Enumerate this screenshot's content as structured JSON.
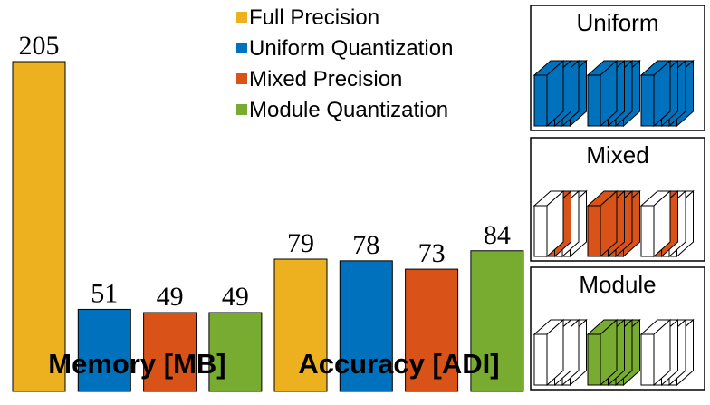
{
  "chart_data": {
    "type": "bar",
    "title": "",
    "groups": [
      {
        "label": "Memory [MB]",
        "values": [
          205,
          51,
          49,
          49
        ]
      },
      {
        "label": "Accuracy [ADI]",
        "values": [
          79,
          78,
          73,
          84
        ]
      }
    ],
    "series": [
      {
        "name": "Full Precision",
        "color": "#EDB120"
      },
      {
        "name": "Uniform Quantization",
        "color": "#0072BD"
      },
      {
        "name": "Mixed Precision",
        "color": "#D95319"
      },
      {
        "name": "Module Quantization",
        "color": "#77AC30"
      }
    ],
    "legend_position": "top-center",
    "grid": false,
    "xlabel": "",
    "ylabel": ""
  },
  "panels": [
    {
      "title": "Uniform",
      "pattern": [
        "blue",
        "blue",
        "blue"
      ]
    },
    {
      "title": "Mixed",
      "pattern": [
        "orange-stripe",
        "orange-full",
        "orange-stripe"
      ]
    },
    {
      "title": "Module",
      "pattern": [
        "white",
        "green",
        "white"
      ]
    }
  ]
}
